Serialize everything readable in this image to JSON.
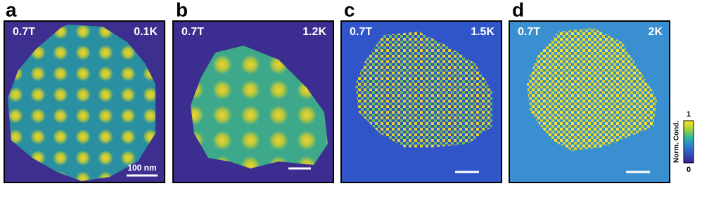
{
  "panels": [
    {
      "label": "a",
      "field": "0.7T",
      "temperature": "0.1K",
      "scale_bar": "100 nm"
    },
    {
      "label": "b",
      "field": "0.7T",
      "temperature": "1.2K"
    },
    {
      "label": "c",
      "field": "0.7T",
      "temperature": "1.5K"
    },
    {
      "label": "d",
      "field": "0.7T",
      "temperature": "2K"
    }
  ],
  "colorbar": {
    "title": "Norm. Cond.",
    "max": 1,
    "min": 0
  }
}
